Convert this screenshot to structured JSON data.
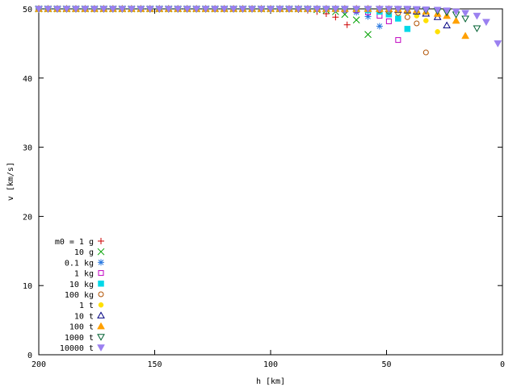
{
  "chart_data": {
    "type": "scatter",
    "title": "",
    "xlabel": "h [km]",
    "ylabel": "v [km/s]",
    "xlim": [
      200,
      0
    ],
    "ylim": [
      0,
      50
    ],
    "x_reversed": true,
    "xticks": [
      200,
      150,
      100,
      50,
      0
    ],
    "yticks": [
      0,
      10,
      20,
      30,
      40,
      50
    ],
    "grid": false,
    "legend_position": "bottom-left",
    "series": [
      {
        "name": "m0 = 1 g",
        "marker": "plus",
        "color": "#cc0000",
        "x": [
          200,
          196,
          192,
          188,
          184,
          180,
          176,
          172,
          168,
          164,
          160,
          156,
          152,
          148,
          144,
          140,
          136,
          132,
          128,
          124,
          120,
          116,
          112,
          108,
          104,
          100,
          96,
          92,
          88,
          84,
          80,
          76,
          72,
          67
        ],
        "y": [
          50,
          50,
          50,
          50,
          50,
          50,
          50,
          50,
          50,
          50,
          50,
          50,
          50,
          50,
          50,
          50,
          50,
          50,
          50,
          50,
          50,
          50,
          50,
          50,
          50,
          50,
          50,
          50,
          49.9,
          49.8,
          49.6,
          49.3,
          48.8,
          47.7
        ]
      },
      {
        "name": "10 g",
        "marker": "cross",
        "color": "#00a000",
        "x": [
          200,
          196,
          192,
          188,
          184,
          180,
          176,
          172,
          168,
          164,
          160,
          156,
          152,
          148,
          144,
          140,
          136,
          132,
          128,
          124,
          120,
          116,
          112,
          108,
          104,
          100,
          96,
          92,
          88,
          84,
          80,
          76,
          72,
          68,
          63,
          58
        ],
        "y": [
          50,
          50,
          50,
          50,
          50,
          50,
          50,
          50,
          50,
          50,
          50,
          50,
          50,
          50,
          50,
          50,
          50,
          50,
          50,
          50,
          50,
          50,
          50,
          50,
          50,
          50,
          50,
          50,
          50,
          50,
          49.9,
          49.8,
          49.6,
          49.2,
          48.4,
          46.3
        ]
      },
      {
        "name": "0.1 kg",
        "marker": "star",
        "color": "#2878e0",
        "x": [
          200,
          196,
          192,
          188,
          184,
          180,
          176,
          172,
          168,
          164,
          160,
          156,
          152,
          148,
          144,
          140,
          136,
          132,
          128,
          124,
          120,
          116,
          112,
          108,
          104,
          100,
          96,
          92,
          88,
          84,
          80,
          76,
          72,
          68,
          63,
          58,
          53
        ],
        "y": [
          50,
          50,
          50,
          50,
          50,
          50,
          50,
          50,
          50,
          50,
          50,
          50,
          50,
          50,
          50,
          50,
          50,
          50,
          50,
          50,
          50,
          50,
          50,
          50,
          50,
          50,
          50,
          50,
          50,
          50,
          50,
          49.95,
          49.9,
          49.8,
          49.5,
          48.9,
          47.5
        ]
      },
      {
        "name": "1 kg",
        "marker": "square-open",
        "color": "#c000c0",
        "x": [
          200,
          196,
          192,
          188,
          184,
          180,
          176,
          172,
          168,
          164,
          160,
          156,
          152,
          148,
          144,
          140,
          136,
          132,
          128,
          124,
          120,
          116,
          112,
          108,
          104,
          100,
          96,
          92,
          88,
          84,
          80,
          76,
          72,
          68,
          63,
          58,
          53,
          49,
          45
        ],
        "y": [
          50,
          50,
          50,
          50,
          50,
          50,
          50,
          50,
          50,
          50,
          50,
          50,
          50,
          50,
          50,
          50,
          50,
          50,
          50,
          50,
          50,
          50,
          50,
          50,
          50,
          50,
          50,
          50,
          50,
          50,
          50,
          50,
          50,
          49.9,
          49.8,
          49.5,
          49,
          48.2,
          45.5
        ]
      },
      {
        "name": "10 kg",
        "marker": "square-filled",
        "color": "#00d8e8",
        "x": [
          200,
          196,
          192,
          188,
          184,
          180,
          176,
          172,
          168,
          164,
          160,
          156,
          152,
          148,
          144,
          140,
          136,
          132,
          128,
          124,
          120,
          116,
          112,
          108,
          104,
          100,
          96,
          92,
          88,
          84,
          80,
          76,
          72,
          68,
          63,
          58,
          53,
          49,
          45,
          41
        ],
        "y": [
          50,
          50,
          50,
          50,
          50,
          50,
          50,
          50,
          50,
          50,
          50,
          50,
          50,
          50,
          50,
          50,
          50,
          50,
          50,
          50,
          50,
          50,
          50,
          50,
          50,
          50,
          50,
          50,
          50,
          50,
          50,
          50,
          50,
          50,
          49.95,
          49.8,
          49.6,
          49.2,
          48.6,
          47.1
        ]
      },
      {
        "name": "100 kg",
        "marker": "circle-open",
        "color": "#b05000",
        "x": [
          200,
          196,
          192,
          188,
          184,
          180,
          176,
          172,
          168,
          164,
          160,
          156,
          152,
          148,
          144,
          140,
          136,
          132,
          128,
          124,
          120,
          116,
          112,
          108,
          104,
          100,
          96,
          92,
          88,
          84,
          80,
          76,
          72,
          68,
          63,
          58,
          53,
          49,
          45,
          41,
          37,
          33
        ],
        "y": [
          50,
          50,
          50,
          50,
          50,
          50,
          50,
          50,
          50,
          50,
          50,
          50,
          50,
          50,
          50,
          50,
          50,
          50,
          50,
          50,
          50,
          50,
          50,
          50,
          50,
          50,
          50,
          50,
          50,
          50,
          50,
          50,
          50,
          50,
          50,
          49.95,
          49.8,
          49.6,
          49.4,
          48.8,
          47.9,
          43.7
        ]
      },
      {
        "name": "1 t",
        "marker": "circle-filled",
        "color": "#ffe000",
        "x": [
          200,
          196,
          192,
          188,
          184,
          180,
          176,
          172,
          168,
          164,
          160,
          156,
          152,
          148,
          144,
          140,
          136,
          132,
          128,
          124,
          120,
          116,
          112,
          108,
          104,
          100,
          96,
          92,
          88,
          84,
          80,
          76,
          72,
          68,
          63,
          58,
          53,
          49,
          45,
          41,
          37,
          33,
          28
        ],
        "y": [
          50,
          50,
          50,
          50,
          50,
          50,
          50,
          50,
          50,
          50,
          50,
          50,
          50,
          50,
          50,
          50,
          50,
          50,
          50,
          50,
          50,
          50,
          50,
          50,
          50,
          50,
          50,
          50,
          50,
          50,
          50,
          50,
          50,
          50,
          50,
          50,
          49.95,
          49.85,
          49.7,
          49.5,
          49,
          48.3,
          46.7
        ]
      },
      {
        "name": "10 t",
        "marker": "triangle-open",
        "color": "#000080",
        "x": [
          200,
          196,
          192,
          188,
          184,
          180,
          176,
          172,
          168,
          164,
          160,
          156,
          152,
          148,
          144,
          140,
          136,
          132,
          128,
          124,
          120,
          116,
          112,
          108,
          104,
          100,
          96,
          92,
          88,
          84,
          80,
          76,
          72,
          68,
          63,
          58,
          53,
          49,
          45,
          41,
          37,
          33,
          28,
          24
        ],
        "y": [
          50,
          50,
          50,
          50,
          50,
          50,
          50,
          50,
          50,
          50,
          50,
          50,
          50,
          50,
          50,
          50,
          50,
          50,
          50,
          50,
          50,
          50,
          50,
          50,
          50,
          50,
          50,
          50,
          50,
          50,
          50,
          50,
          50,
          50,
          50,
          50,
          50,
          49.95,
          49.85,
          49.75,
          49.6,
          49.3,
          48.8,
          47.6
        ]
      },
      {
        "name": "100 t",
        "marker": "triangle-filled",
        "color": "#ffa000",
        "x": [
          200,
          196,
          192,
          188,
          184,
          180,
          176,
          172,
          168,
          164,
          160,
          156,
          152,
          148,
          144,
          140,
          136,
          132,
          128,
          124,
          120,
          116,
          112,
          108,
          104,
          100,
          96,
          92,
          88,
          84,
          80,
          76,
          72,
          68,
          63,
          58,
          53,
          49,
          45,
          41,
          37,
          33,
          28,
          24,
          20,
          16
        ],
        "y": [
          50,
          50,
          50,
          50,
          50,
          50,
          50,
          50,
          50,
          50,
          50,
          50,
          50,
          50,
          50,
          50,
          50,
          50,
          50,
          50,
          50,
          50,
          50,
          50,
          50,
          50,
          50,
          50,
          50,
          50,
          50,
          50,
          50,
          50,
          50,
          50,
          50,
          50,
          49.95,
          49.9,
          49.8,
          49.6,
          49.3,
          49,
          48.3,
          46.1
        ]
      },
      {
        "name": "1000 t",
        "marker": "triangle-down-open",
        "color": "#006030",
        "x": [
          200,
          196,
          192,
          188,
          184,
          180,
          176,
          172,
          168,
          164,
          160,
          156,
          152,
          148,
          144,
          140,
          136,
          132,
          128,
          124,
          120,
          116,
          112,
          108,
          104,
          100,
          96,
          92,
          88,
          84,
          80,
          76,
          72,
          68,
          63,
          58,
          53,
          49,
          45,
          41,
          37,
          33,
          28,
          24,
          20,
          16,
          11
        ],
        "y": [
          50,
          50,
          50,
          50,
          50,
          50,
          50,
          50,
          50,
          50,
          50,
          50,
          50,
          50,
          50,
          50,
          50,
          50,
          50,
          50,
          50,
          50,
          50,
          50,
          50,
          50,
          50,
          50,
          50,
          50,
          50,
          50,
          50,
          50,
          50,
          50,
          50,
          50,
          50,
          49.95,
          49.9,
          49.8,
          49.7,
          49.5,
          49.2,
          48.6,
          47.2
        ]
      },
      {
        "name": "10000 t",
        "marker": "triangle-down-filled",
        "color": "#9b80f0",
        "x": [
          200,
          196,
          192,
          188,
          184,
          180,
          176,
          172,
          168,
          164,
          160,
          156,
          152,
          148,
          144,
          140,
          136,
          132,
          128,
          124,
          120,
          116,
          112,
          108,
          104,
          100,
          96,
          92,
          88,
          84,
          80,
          76,
          72,
          68,
          63,
          58,
          53,
          49,
          45,
          41,
          37,
          33,
          28,
          24,
          20,
          16,
          11,
          7,
          2
        ],
        "y": [
          50,
          50,
          50,
          50,
          50,
          50,
          50,
          50,
          50,
          50,
          50,
          50,
          50,
          50,
          50,
          50,
          50,
          50,
          50,
          50,
          50,
          50,
          50,
          50,
          50,
          50,
          50,
          50,
          50,
          50,
          50,
          50,
          50,
          50,
          50,
          50,
          50,
          50,
          50,
          50,
          49.95,
          49.9,
          49.85,
          49.75,
          49.6,
          49.4,
          49,
          48.1,
          45
        ]
      }
    ]
  }
}
